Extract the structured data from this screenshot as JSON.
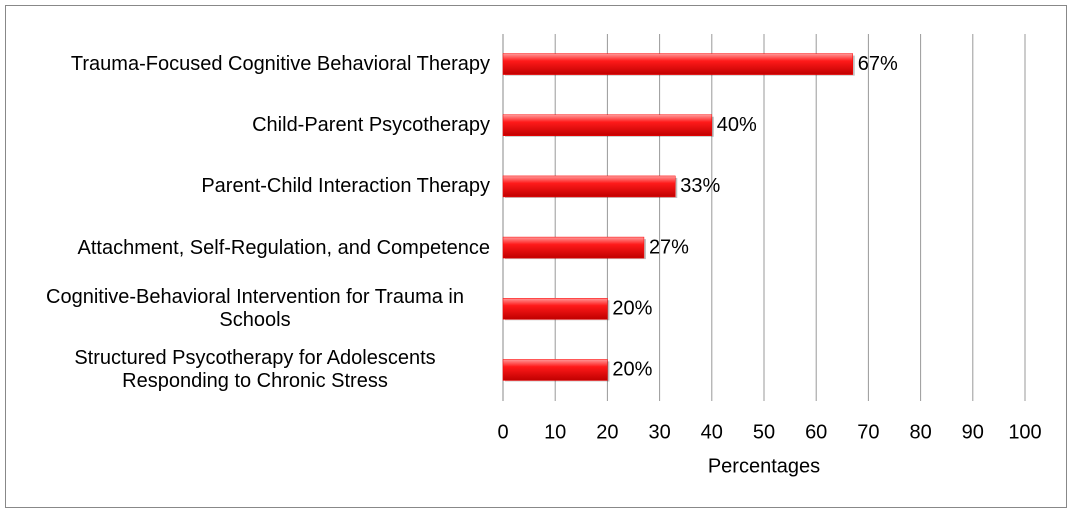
{
  "chart_data": {
    "type": "bar",
    "orientation": "horizontal",
    "x_label": "Percentages",
    "categories": [
      "Trauma-Focused Cognitive Behavioral Therapy",
      "Child-Parent Psycotherapy",
      "Parent-Child Interaction Therapy",
      "Attachment, Self-Regulation, and Competence",
      "Cognitive-Behavioral Intervention for Trauma in Schools",
      "Structured Psycotherapy for Adolescents Responding to Chronic Stress"
    ],
    "values": [
      67,
      40,
      33,
      27,
      20,
      20
    ],
    "value_labels": [
      "67%",
      "40%",
      "33%",
      "27%",
      "20%",
      "20%"
    ],
    "color": "#ff0000",
    "xlim": [
      0,
      100
    ],
    "xticks": [
      0,
      10,
      20,
      30,
      40,
      50,
      60,
      70,
      80,
      90,
      100
    ],
    "grid": true
  }
}
